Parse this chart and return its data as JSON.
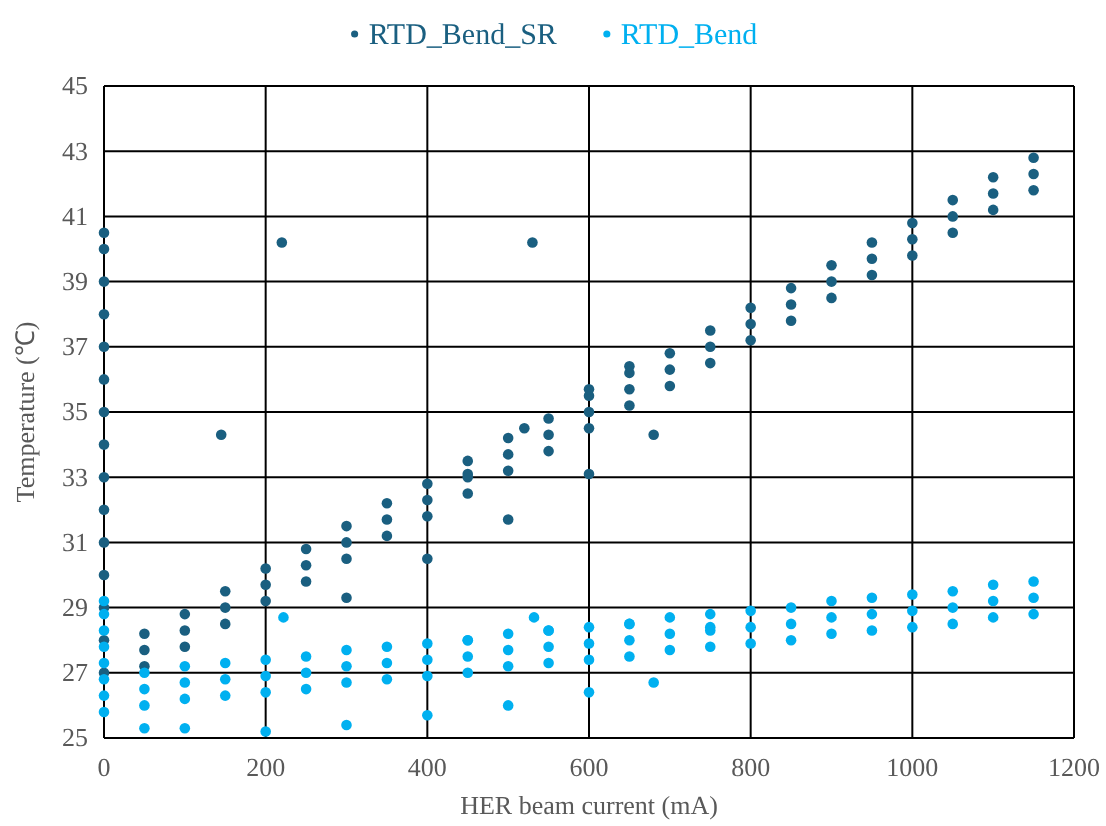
{
  "chart_data": {
    "type": "scatter",
    "xlabel": "HER beam current (mA)",
    "ylabel": "Temperature (℃)",
    "xlim": [
      0,
      1200
    ],
    "xticks": [
      0,
      200,
      400,
      600,
      800,
      1000,
      1200
    ],
    "ylim": [
      25,
      45
    ],
    "yticks": [
      25,
      27,
      29,
      31,
      33,
      35,
      37,
      39,
      41,
      43,
      45
    ],
    "grid": true,
    "legend": "top",
    "marker": "circle",
    "series": [
      {
        "name": "RTD_Bend_SR",
        "color": "#1a5f80",
        "x": [
          0,
          0,
          0,
          0,
          0,
          0,
          0,
          0,
          0,
          0,
          0,
          0,
          0,
          0,
          0,
          50,
          50,
          50,
          100,
          100,
          100,
          150,
          150,
          150,
          200,
          200,
          200,
          250,
          250,
          250,
          300,
          300,
          300,
          350,
          350,
          350,
          400,
          400,
          400,
          450,
          450,
          450,
          500,
          500,
          500,
          550,
          550,
          550,
          600,
          600,
          600,
          650,
          650,
          650,
          700,
          700,
          700,
          750,
          750,
          750,
          800,
          800,
          800,
          850,
          850,
          850,
          900,
          900,
          900,
          950,
          950,
          950,
          1000,
          1000,
          1000,
          1050,
          1050,
          1050,
          1100,
          1100,
          1100,
          1150,
          1150,
          1150,
          300,
          400,
          500,
          600,
          680,
          450,
          520,
          600,
          650,
          145,
          220,
          530
        ],
        "values": [
          27,
          28,
          29,
          30,
          31,
          32,
          33,
          34,
          35,
          36,
          37,
          38,
          39,
          40,
          40.5,
          27.2,
          27.7,
          28.2,
          27.8,
          28.3,
          28.8,
          28.5,
          29,
          29.5,
          29.2,
          29.7,
          30.2,
          29.8,
          30.3,
          30.8,
          30.5,
          31,
          31.5,
          31.2,
          31.7,
          32.2,
          31.8,
          32.3,
          32.8,
          32.5,
          33,
          33.5,
          33.2,
          33.7,
          34.2,
          33.8,
          34.3,
          34.8,
          34.5,
          35,
          35.5,
          35.2,
          35.7,
          36.2,
          35.8,
          36.3,
          36.8,
          36.5,
          37,
          37.5,
          37.2,
          37.7,
          38.2,
          37.8,
          38.3,
          38.8,
          38.5,
          39,
          39.5,
          39.2,
          39.7,
          40.2,
          39.8,
          40.3,
          40.8,
          40.5,
          41,
          41.5,
          41.2,
          41.7,
          42.2,
          41.8,
          42.3,
          42.8,
          29.3,
          30.5,
          31.7,
          33.1,
          34.3,
          33.1,
          34.5,
          35.7,
          36.4,
          34.3,
          40.2,
          40.2
        ]
      },
      {
        "name": "RTD_Bend",
        "color": "#00b0f0",
        "x": [
          0,
          0,
          0,
          0,
          0,
          0,
          0,
          0,
          50,
          50,
          50,
          100,
          100,
          100,
          150,
          150,
          150,
          200,
          200,
          200,
          250,
          250,
          250,
          300,
          300,
          300,
          350,
          350,
          350,
          400,
          400,
          400,
          450,
          450,
          450,
          500,
          500,
          500,
          550,
          550,
          550,
          600,
          600,
          600,
          650,
          650,
          650,
          700,
          700,
          700,
          750,
          750,
          750,
          800,
          800,
          800,
          850,
          850,
          850,
          900,
          900,
          900,
          950,
          950,
          950,
          1000,
          1000,
          1000,
          1050,
          1050,
          1050,
          1100,
          1100,
          1100,
          1150,
          1150,
          1150,
          50,
          100,
          200,
          300,
          400,
          500,
          600,
          680,
          450,
          550,
          650,
          750,
          222,
          532
        ],
        "values": [
          25.8,
          26.3,
          26.8,
          27.3,
          27.8,
          28.3,
          28.8,
          29.2,
          26,
          26.5,
          27,
          26.2,
          26.7,
          27.2,
          26.3,
          26.8,
          27.3,
          26.4,
          26.9,
          27.4,
          26.5,
          27,
          27.5,
          26.7,
          27.2,
          27.7,
          26.8,
          27.3,
          27.8,
          26.9,
          27.4,
          27.9,
          27,
          27.5,
          28,
          27.2,
          27.7,
          28.2,
          27.3,
          27.8,
          28.3,
          27.4,
          27.9,
          28.4,
          27.5,
          28,
          28.5,
          27.7,
          28.2,
          28.7,
          27.8,
          28.3,
          28.8,
          27.9,
          28.4,
          28.9,
          28,
          28.5,
          29,
          28.2,
          28.7,
          29.2,
          28.3,
          28.8,
          29.3,
          28.4,
          28.9,
          29.4,
          28.5,
          29,
          29.5,
          28.7,
          29.2,
          29.7,
          28.8,
          29.3,
          29.8,
          25.3,
          25.3,
          25.2,
          25.4,
          25.7,
          26,
          26.4,
          26.7,
          28,
          28.3,
          28.5,
          28.4,
          28.7,
          28.7
        ]
      }
    ]
  }
}
